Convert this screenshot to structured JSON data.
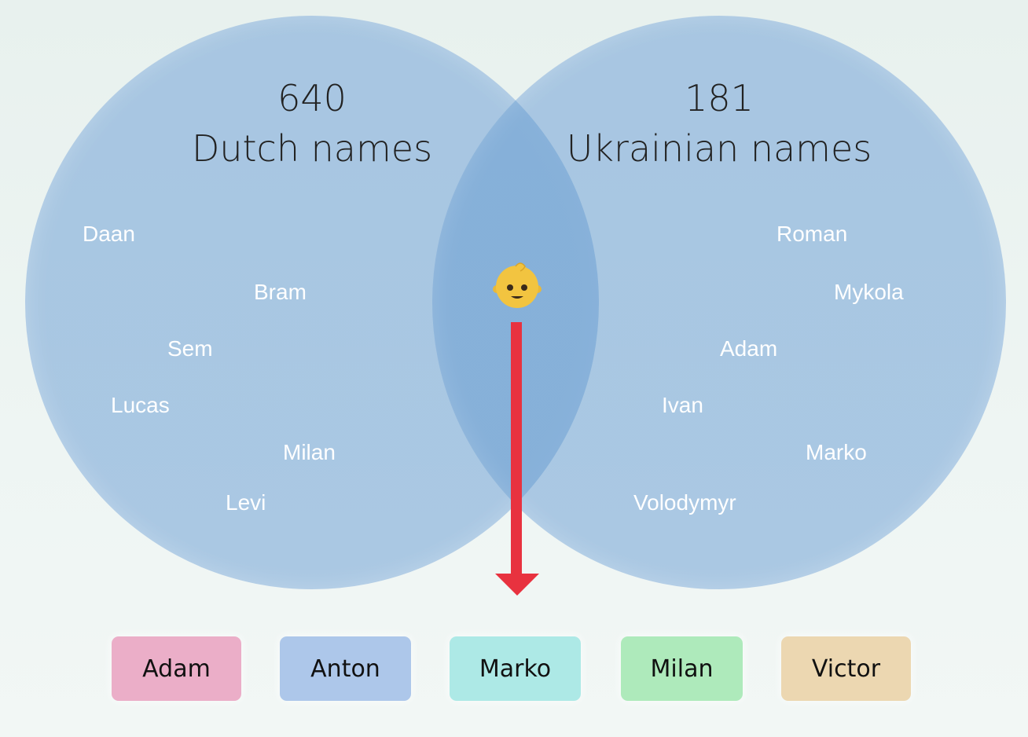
{
  "left_set": {
    "count": "640",
    "title": "Dutch names",
    "names": [
      "Daan",
      "Bram",
      "Sem",
      "Lucas",
      "Milan",
      "Levi"
    ]
  },
  "right_set": {
    "count": "181",
    "title": "Ukrainian names",
    "names": [
      "Roman",
      "Mykola",
      "Adam",
      "Ivan",
      "Marko",
      "Volodymyr"
    ]
  },
  "center_icon": "baby-emoji",
  "arrow_color": "#e8323f",
  "results": [
    {
      "label": "Adam",
      "color": "#ebaec8"
    },
    {
      "label": "Anton",
      "color": "#adc7ea"
    },
    {
      "label": "Marko",
      "color": "#ade9e6"
    },
    {
      "label": "Milan",
      "color": "#aeeabb"
    },
    {
      "label": "Victor",
      "color": "#ecd7b1"
    }
  ]
}
